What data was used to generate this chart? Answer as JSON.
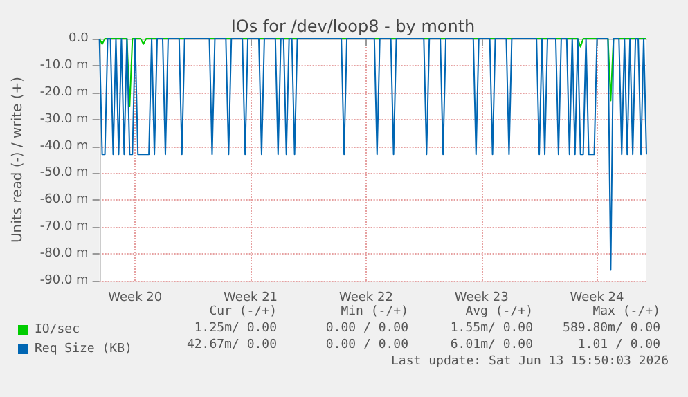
{
  "chart_data": {
    "type": "line",
    "title": "IOs for /dev/loop8 - by month",
    "ylabel": "Units read (-) / write (+)",
    "categories": [
      null,
      null,
      null,
      null,
      null,
      null,
      null,
      null,
      null,
      null,
      null,
      null,
      null,
      "Week 20",
      null,
      null,
      null,
      null,
      null,
      null,
      null,
      null,
      null,
      null,
      null,
      null,
      null,
      null,
      null,
      null,
      null,
      null,
      null,
      null,
      null,
      null,
      null,
      null,
      null,
      null,
      null,
      null,
      null,
      null,
      null,
      null,
      null,
      null,
      null,
      null,
      null,
      null,
      null,
      null,
      null,
      "Week 21",
      null,
      null,
      null,
      null,
      null,
      null,
      null,
      null,
      null,
      null,
      null,
      null,
      null,
      null,
      null,
      null,
      null,
      null,
      null,
      null,
      null,
      null,
      null,
      null,
      null,
      null,
      null,
      null,
      null,
      null,
      null,
      null,
      null,
      null,
      null,
      null,
      null,
      null,
      null,
      null,
      null,
      "Week 22",
      null,
      null,
      null,
      null,
      null,
      null,
      null,
      null,
      null,
      null,
      null,
      null,
      null,
      null,
      null,
      null,
      null,
      null,
      null,
      null,
      null,
      null,
      null,
      null,
      null,
      null,
      null,
      null,
      null,
      null,
      null,
      null,
      null,
      null,
      null,
      null,
      null,
      null,
      null,
      null,
      null,
      "Week 23",
      null,
      null,
      null,
      null,
      null,
      null,
      null,
      null,
      null,
      null,
      null,
      null,
      null,
      null,
      null,
      null,
      null,
      null,
      null,
      null,
      null,
      null,
      null,
      null,
      null,
      null,
      null,
      null,
      null,
      null,
      null,
      null,
      null,
      null,
      null,
      null,
      null,
      null,
      null,
      null,
      null,
      "Week 24",
      null,
      null,
      null,
      null,
      null,
      null,
      null,
      null,
      null,
      null,
      null,
      null,
      null,
      null,
      null,
      null,
      null,
      null
    ],
    "ylim": [
      -90,
      0
    ],
    "yticks": [
      {
        "value": -90,
        "label": "-90.0 m"
      },
      {
        "value": -80,
        "label": "-80.0 m"
      },
      {
        "value": -70,
        "label": "-70.0 m"
      },
      {
        "value": -60,
        "label": "-60.0 m"
      },
      {
        "value": -50,
        "label": "-50.0 m"
      },
      {
        "value": -40,
        "label": "-40.0 m"
      },
      {
        "value": -30,
        "label": "-30.0 m"
      },
      {
        "value": -20,
        "label": "-20.0 m"
      },
      {
        "value": -10,
        "label": "-10.0 m"
      },
      {
        "value": 0,
        "label": "0.0"
      }
    ],
    "grid": true,
    "legend": "bottom left",
    "marker": "none",
    "line_style": "solid",
    "series": [
      {
        "name": "IO/sec",
        "color": "#00cc00",
        "values": [
          0,
          -2,
          0,
          0,
          0,
          0,
          0,
          0,
          0,
          0,
          0,
          -25,
          0,
          0,
          0,
          0,
          -2,
          0,
          0,
          0,
          0,
          0,
          0,
          0,
          0,
          0,
          0,
          0,
          0,
          0,
          0,
          0,
          0,
          0,
          0,
          0,
          0,
          0,
          0,
          0,
          0,
          0,
          0,
          0,
          0,
          0,
          0,
          0,
          0,
          0,
          0,
          0,
          0,
          0,
          0,
          0,
          0,
          0,
          0,
          0,
          0,
          0,
          0,
          0,
          0,
          0,
          0,
          0,
          0,
          0,
          0,
          0,
          0,
          0,
          0,
          0,
          0,
          0,
          0,
          0,
          0,
          0,
          0,
          0,
          0,
          0,
          0,
          0,
          0,
          0,
          0,
          0,
          0,
          0,
          0,
          0,
          0,
          0,
          0,
          0,
          0,
          0,
          0,
          0,
          0,
          0,
          0,
          0,
          0,
          0,
          0,
          0,
          0,
          0,
          0,
          0,
          0,
          0,
          0,
          0,
          0,
          0,
          0,
          0,
          0,
          0,
          0,
          0,
          0,
          0,
          0,
          0,
          0,
          0,
          0,
          0,
          0,
          0,
          0,
          0,
          0,
          0,
          0,
          0,
          0,
          0,
          0,
          0,
          0,
          0,
          0,
          0,
          0,
          0,
          0,
          0,
          0,
          0,
          0,
          0,
          0,
          0,
          0,
          0,
          0,
          0,
          0,
          0,
          0,
          0,
          0,
          0,
          0,
          0,
          0,
          -3,
          0,
          0,
          0,
          0,
          0,
          0,
          0,
          0,
          0,
          0,
          -23,
          0,
          0,
          0,
          0,
          0,
          0,
          0,
          0,
          0,
          0,
          0,
          0,
          0
        ]
      },
      {
        "name": "Req Size (KB)",
        "color": "#0066b3",
        "values": [
          0,
          -43,
          -43,
          0,
          0,
          -43,
          0,
          -43,
          0,
          -43,
          0,
          -43,
          -43,
          0,
          -43,
          -43,
          -43,
          -43,
          -43,
          0,
          -43,
          0,
          0,
          0,
          -43,
          0,
          0,
          0,
          0,
          0,
          -43,
          0,
          0,
          0,
          0,
          0,
          0,
          0,
          0,
          0,
          0,
          -43,
          0,
          0,
          0,
          0,
          0,
          -43,
          0,
          0,
          0,
          0,
          0,
          -43,
          0,
          0,
          0,
          0,
          0,
          -43,
          0,
          0,
          0,
          0,
          0,
          -43,
          0,
          0,
          -43,
          0,
          0,
          -43,
          0,
          0,
          0,
          0,
          0,
          0,
          0,
          0,
          0,
          0,
          0,
          0,
          0,
          0,
          0,
          0,
          0,
          -43,
          0,
          0,
          0,
          0,
          0,
          0,
          0,
          0,
          0,
          0,
          0,
          -43,
          0,
          0,
          0,
          0,
          0,
          -43,
          0,
          0,
          0,
          0,
          0,
          0,
          0,
          0,
          0,
          0,
          0,
          -43,
          0,
          0,
          0,
          0,
          0,
          -43,
          0,
          0,
          0,
          0,
          0,
          0,
          0,
          0,
          0,
          0,
          0,
          -43,
          0,
          0,
          0,
          0,
          0,
          -43,
          0,
          0,
          0,
          0,
          0,
          -43,
          0,
          0,
          0,
          0,
          0,
          0,
          0,
          0,
          0,
          0,
          -43,
          0,
          -43,
          0,
          0,
          0,
          0,
          -43,
          0,
          0,
          0,
          -43,
          0,
          -43,
          0,
          -43,
          -43,
          0,
          -43,
          -43,
          -43,
          0,
          0,
          0,
          0,
          0,
          -86,
          0,
          0,
          0,
          -43,
          0,
          -43,
          0,
          -43,
          0,
          0,
          -43,
          0,
          -43
        ]
      }
    ],
    "annotations": [
      "Cur (-/+)",
      "Min (-/+)",
      "Avg (-/+)",
      "Max (-/+)",
      "1.25m/ 0.00",
      "0.00 / 0.00",
      "1.55m/ 0.00",
      "589.80m/ 0.00",
      "42.67m/ 0.00",
      "0.00 / 0.00",
      "6.01m/ 0.00",
      "1.01 / 0.00",
      "Last update: Sat Jun 13 15:50:03 2026"
    ]
  }
}
